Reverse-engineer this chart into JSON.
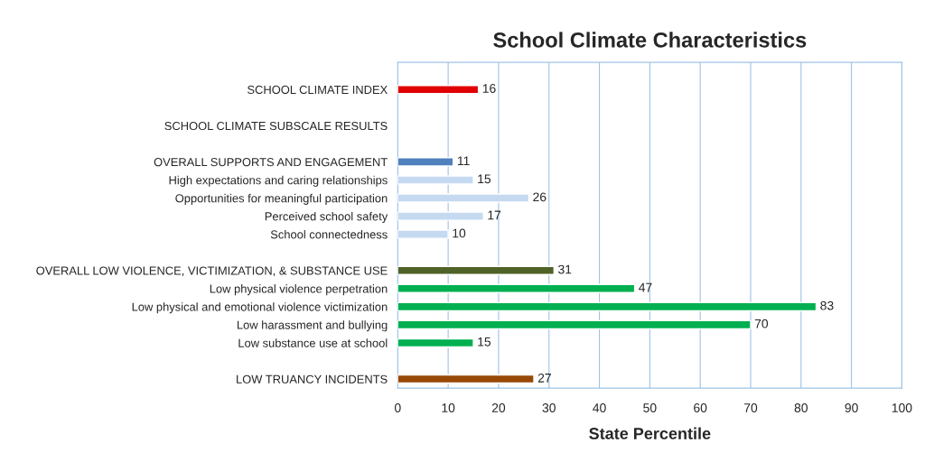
{
  "chart_data": {
    "type": "bar",
    "orientation": "horizontal",
    "title": "School Climate Characteristics",
    "xlabel": "State Percentile",
    "categories": [
      null,
      "SCHOOL CLIMATE INDEX",
      null,
      "SCHOOL CLIMATE SUBSCALE RESULTS",
      null,
      "OVERALL SUPPORTS AND ENGAGEMENT",
      "High expectations and caring relationships",
      "Opportunities for meaningful participation",
      "Perceived school safety",
      "School connectedness",
      null,
      "OVERALL LOW VIOLENCE, VICTIMIZATION, & SUBSTANCE USE",
      "Low physical violence perpetration",
      "Low physical and emotional violence victimization",
      "Low harassment and bullying",
      "Low substance use at school",
      null,
      "LOW TRUANCY INCIDENTS"
    ],
    "values": [
      null,
      16,
      null,
      null,
      null,
      11,
      15,
      26,
      17,
      10,
      null,
      31,
      47,
      83,
      70,
      15,
      null,
      27
    ],
    "colors": [
      null,
      "#e00000",
      null,
      null,
      null,
      "#4f81bd",
      "#c5d9f1",
      "#c5d9f1",
      "#c5d9f1",
      "#c5d9f1",
      null,
      "#4f6228",
      "#00b050",
      "#00b050",
      "#00b050",
      "#00b050",
      null,
      "#984807"
    ],
    "xlim": [
      0,
      100
    ],
    "xticks": [
      0,
      10,
      20,
      30,
      40,
      50,
      60,
      70,
      80,
      90,
      100
    ],
    "grid": "x",
    "data_labels": true
  }
}
